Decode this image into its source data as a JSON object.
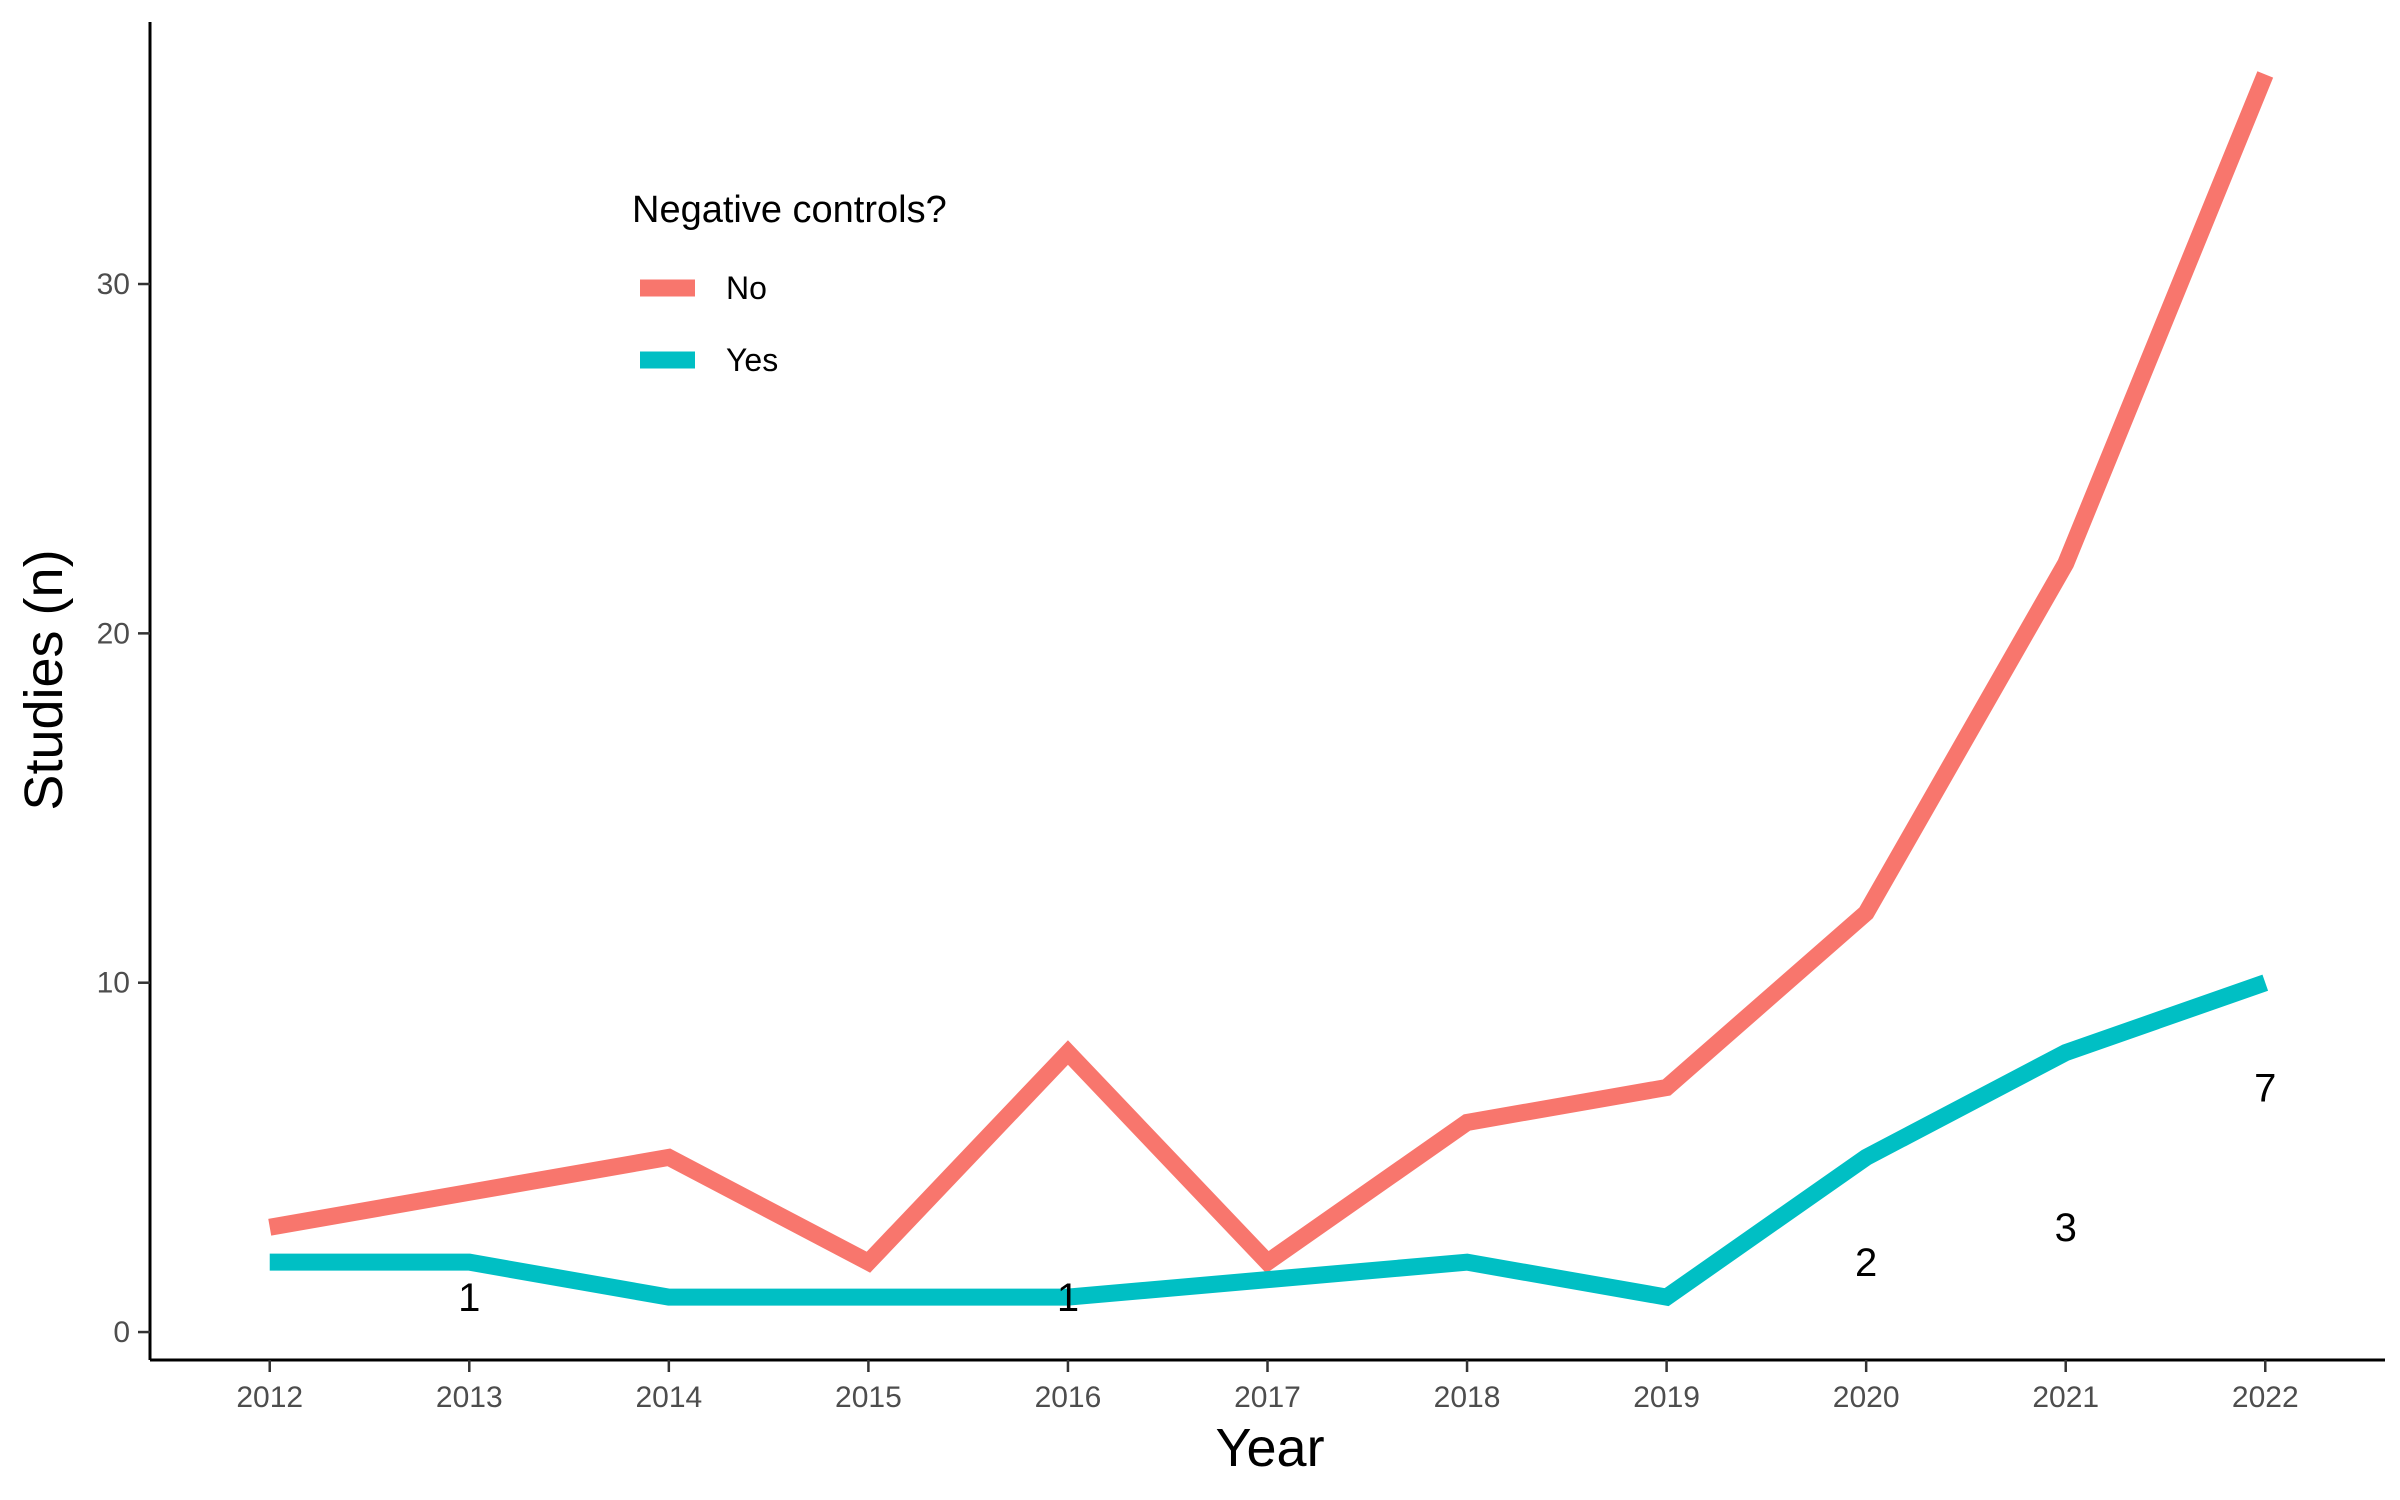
{
  "chart_data": {
    "type": "line",
    "title": "",
    "xlabel": "Year",
    "ylabel": "Studies (n)",
    "x": [
      2012,
      2013,
      2014,
      2015,
      2016,
      2017,
      2018,
      2019,
      2020,
      2021,
      2022
    ],
    "xticks": [
      2012,
      2013,
      2014,
      2015,
      2016,
      2017,
      2018,
      2019,
      2020,
      2021,
      2022
    ],
    "yticks": [
      0,
      10,
      20,
      30
    ],
    "xlim": [
      2011.4,
      2022.6
    ],
    "ylim": [
      -0.8,
      37.5
    ],
    "grid": false,
    "legend": {
      "title": "Negative controls?",
      "placement": "top-left"
    },
    "series": [
      {
        "name": "No",
        "color": "#F8766D",
        "values": [
          3,
          4,
          5,
          2,
          8,
          2,
          6,
          7,
          12,
          22,
          36
        ]
      },
      {
        "name": "Yes",
        "color": "#00BFC4",
        "values": [
          2,
          2,
          1,
          1,
          1,
          1.5,
          2,
          1,
          5,
          8,
          10
        ]
      }
    ],
    "annotations": [
      {
        "x": 2013,
        "y": 1,
        "text": "1"
      },
      {
        "x": 2016,
        "y": 1,
        "text": "1"
      },
      {
        "x": 2020,
        "y": 2,
        "text": "2"
      },
      {
        "x": 2021,
        "y": 3,
        "text": "3"
      },
      {
        "x": 2022,
        "y": 7,
        "text": "7"
      }
    ]
  }
}
